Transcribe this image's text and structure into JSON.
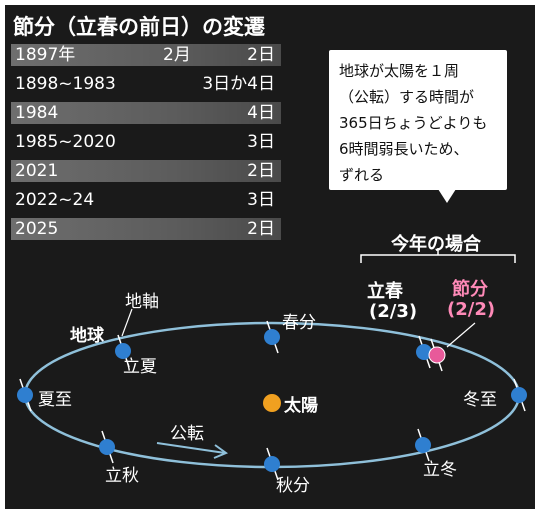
{
  "title": "節分（立春の前日）の変遷",
  "table": [
    {
      "year": "1897年",
      "month": "2月",
      "day": "2日"
    },
    {
      "year": "1898~1983",
      "month": "",
      "day": "3日か4日"
    },
    {
      "year": "1984",
      "month": "",
      "day": "4日"
    },
    {
      "year": "1985~2020",
      "month": "",
      "day": "3日"
    },
    {
      "year": "2021",
      "month": "",
      "day": "2日"
    },
    {
      "year": "2022~24",
      "month": "",
      "day": "3日"
    },
    {
      "year": "2025",
      "month": "",
      "day": "2日"
    }
  ],
  "callout": {
    "text": "地球が太陽を１周\n（公転）する時間が\n365日ちょうどよりも\n6時間弱長いため、\nずれる"
  },
  "this_year": {
    "label": "今年の場合",
    "risshun_name": "立春",
    "risshun_date": "(2/3)",
    "setsubun_name": "節分",
    "setsubun_date": "(2/2)"
  },
  "orbit": {
    "earth_label": "地球",
    "axis_label": "地軸",
    "sun_label": "太陽",
    "revolution_label": "公転",
    "points": {
      "rikka": "立夏",
      "shunbun": "春分",
      "geshi": "夏至",
      "touji": "冬至",
      "risshuu": "立秋",
      "shuubun": "秋分",
      "rittou": "立冬"
    }
  },
  "colors": {
    "background": "#1a1a1a",
    "orbit": "#8fc0da",
    "earth": "#2f7fd0",
    "sun": "#f0a020",
    "setsubun": "#e85a9a",
    "setsubun_text": "#ff8ab8"
  }
}
